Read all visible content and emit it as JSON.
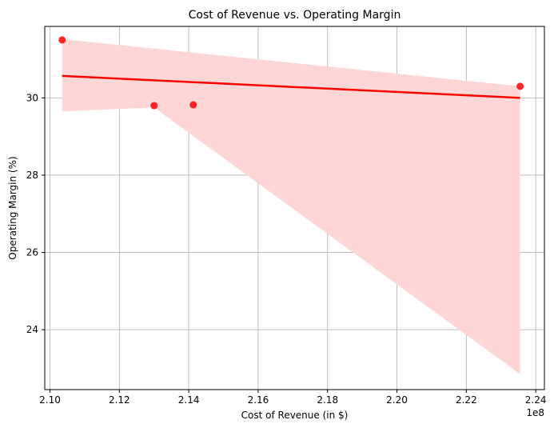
{
  "chart_data": {
    "type": "scatter",
    "title": "Cost of Revenue vs. Operating Margin",
    "xlabel": "Cost of Revenue (in $)",
    "ylabel": "Operating Margin (%)",
    "x_offset_label": "1e8",
    "x_ticks": [
      2.1,
      2.12,
      2.14,
      2.16,
      2.18,
      2.2,
      2.22,
      2.24
    ],
    "x_tick_labels": [
      "2.10",
      "2.12",
      "2.14",
      "2.16",
      "2.18",
      "2.20",
      "2.22",
      "2.24"
    ],
    "y_ticks": [
      24,
      26,
      28,
      30
    ],
    "y_tick_labels": [
      "24",
      "26",
      "28",
      "30"
    ],
    "xlim": [
      2.0985,
      2.2425
    ],
    "ylim": [
      22.45,
      31.85
    ],
    "grid": true,
    "points": [
      {
        "x": 2.1035,
        "y": 31.5
      },
      {
        "x": 2.13,
        "y": 29.8
      },
      {
        "x": 2.1413,
        "y": 29.82
      },
      {
        "x": 2.2355,
        "y": 30.3
      }
    ],
    "regression_line": [
      {
        "x": 2.1035,
        "y": 30.57
      },
      {
        "x": 2.2355,
        "y": 30.0
      }
    ],
    "confidence_band": {
      "upper": [
        {
          "x": 2.1035,
          "y": 31.52
        },
        {
          "x": 2.2355,
          "y": 30.3
        }
      ],
      "lower": [
        {
          "x": 2.1035,
          "y": 29.65
        },
        {
          "x": 2.13,
          "y": 29.75
        },
        {
          "x": 2.2355,
          "y": 22.85
        }
      ]
    },
    "colors": {
      "point": "#ff0000",
      "line": "#ff0000",
      "band": "#ffd6d6",
      "grid": "#b0b0b0"
    }
  }
}
